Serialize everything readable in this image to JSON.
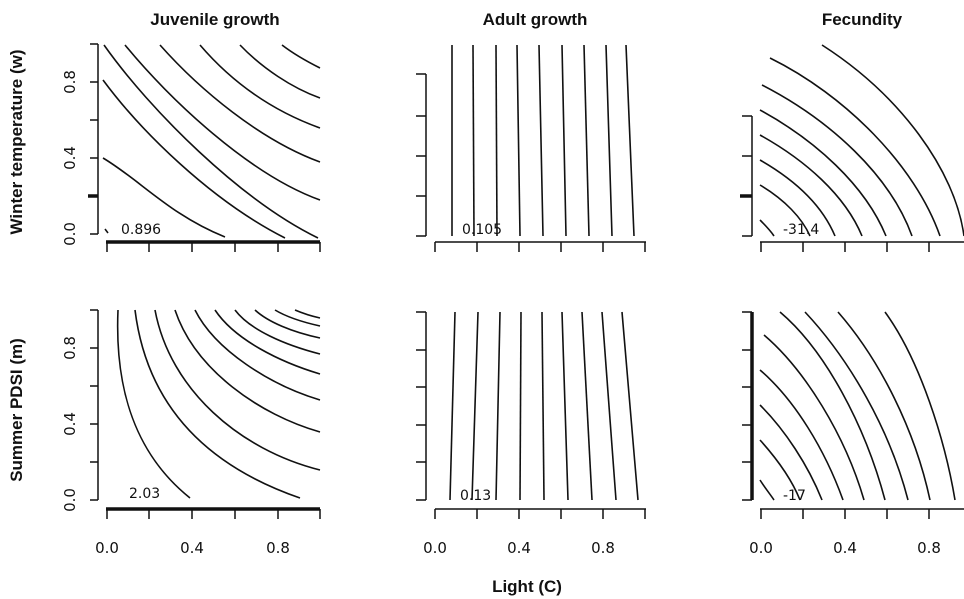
{
  "chart_data": [
    {
      "type": "contour",
      "title": "Juvenile growth",
      "ylabel": "Winter temperature (w)",
      "xlabel": "",
      "x_ticks": [],
      "y_ticks": [
        "0.0",
        "0.4",
        "0.8"
      ],
      "contour_label": "0.896",
      "xlim": [
        0,
        1
      ],
      "ylim": [
        0,
        1
      ]
    },
    {
      "type": "contour",
      "title": "Adult growth",
      "ylabel": "",
      "xlabel": "",
      "x_ticks": [],
      "y_ticks": [],
      "contour_label": "0.105",
      "xlim": [
        0,
        1
      ],
      "ylim": [
        0,
        1
      ]
    },
    {
      "type": "contour",
      "title": "Fecundity",
      "ylabel": "",
      "xlabel": "",
      "x_ticks": [],
      "y_ticks": [],
      "contour_label": "-31.4",
      "xlim": [
        0,
        1
      ],
      "ylim": [
        0,
        1
      ]
    },
    {
      "type": "contour",
      "title": "",
      "ylabel": "Summer PDSI (m)",
      "xlabel": "",
      "x_ticks": [
        "0.0",
        "0.4",
        "0.8"
      ],
      "y_ticks": [
        "0.0",
        "0.4",
        "0.8"
      ],
      "contour_label": "2.03",
      "xlim": [
        0,
        1
      ],
      "ylim": [
        0,
        1
      ]
    },
    {
      "type": "contour",
      "title": "",
      "ylabel": "",
      "xlabel": "Light (C)",
      "x_ticks": [
        "0.0",
        "0.4",
        "0.8"
      ],
      "y_ticks": [],
      "contour_label": "0.13",
      "xlim": [
        0,
        1
      ],
      "ylim": [
        0,
        1
      ]
    },
    {
      "type": "contour",
      "title": "",
      "ylabel": "",
      "xlabel": "",
      "x_ticks": [
        "0.0",
        "0.4",
        "0.8"
      ],
      "y_ticks": [],
      "contour_label": "-17",
      "xlim": [
        0,
        1
      ],
      "ylim": [
        0,
        1
      ]
    }
  ]
}
